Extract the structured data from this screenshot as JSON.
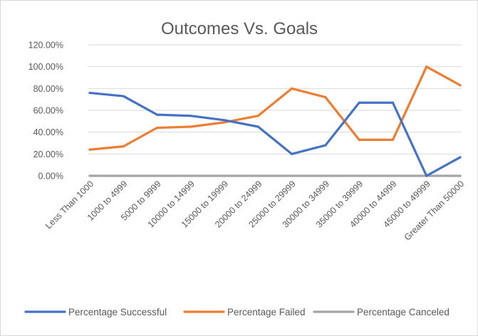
{
  "chart_data": {
    "type": "line",
    "title": "Outcomes Vs. Goals",
    "xlabel": "",
    "ylabel": "",
    "ylim": [
      0,
      120
    ],
    "y_ticks": [
      "0.00%",
      "20.00%",
      "40.00%",
      "60.00%",
      "80.00%",
      "100.00%",
      "120.00%"
    ],
    "y_tick_values": [
      0,
      20,
      40,
      60,
      80,
      100,
      120
    ],
    "grid": true,
    "legend_position": "bottom",
    "categories": [
      "Less Than 1000",
      "1000 to 4999",
      "5000 to 9999",
      "10000 to 14999",
      "15000 to 19999",
      "20000 to 24999",
      "25000 to 29999",
      "30000 to 34999",
      "35000 to 39999",
      "40000 to 44999",
      "45000 to 49999",
      "Greater Than 50000"
    ],
    "series": [
      {
        "name": "Percentage Successful",
        "color": "#4472c4",
        "values": [
          76,
          73,
          56,
          55,
          51,
          45,
          20,
          28,
          67,
          67,
          0,
          17
        ]
      },
      {
        "name": "Percentage Failed",
        "color": "#ed7d31",
        "values": [
          24,
          27,
          44,
          45,
          49,
          55,
          80,
          72,
          33,
          33,
          100,
          83
        ]
      },
      {
        "name": "Percentage Canceled",
        "color": "#a5a5a5",
        "values": [
          0,
          0,
          0,
          0,
          0,
          0,
          0,
          0,
          0,
          0,
          0,
          0
        ]
      }
    ]
  }
}
